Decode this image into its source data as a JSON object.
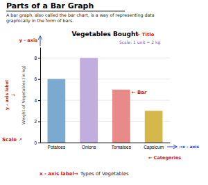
{
  "chart_data": {
    "type": "bar",
    "page_title": "Parts of a Bar Graph",
    "page_subtitle": "A bar graph, also called the bar chart, is a way of representing data\ngraphically in the form of bars.",
    "title": "Vegetables Bought",
    "ylabel": "Weight of Vegetables (in kg)",
    "xlabel": "Types of Vegetables",
    "categories": [
      "Potatoes",
      "Onions",
      "Tomatoes",
      "Capsicum"
    ],
    "values": [
      6,
      8,
      5,
      3
    ],
    "colors": [
      "#7aaad0",
      "#c0aede",
      "#e88a88",
      "#d4b84a"
    ],
    "ylim": [
      0,
      9
    ],
    "yticks": [
      0,
      2,
      4,
      6,
      8
    ],
    "grid": true,
    "annotations": [
      {
        "text": "← Title",
        "color": "#cc2222"
      },
      {
        "text": "Scale: 1 unit = 2 kg",
        "color": "#7755bb"
      },
      {
        "text": "y - axis",
        "color": "#cc2222"
      },
      {
        "text": "y - axis label",
        "color": "#cc2222"
      },
      {
        "text": "→",
        "color": "#cc2222"
      },
      {
        "text": "Scale",
        "color": "#cc2222"
      },
      {
        "text": "↗",
        "color": "#cc2222"
      },
      {
        "text": "→x - axis",
        "color": "#2244bb"
      },
      {
        "text": "← Categories",
        "color": "#cc2222"
      },
      {
        "text": "x - axis label→",
        "color": "#cc2222"
      },
      {
        "text": "← Bar",
        "color": "#cc2222"
      }
    ]
  }
}
